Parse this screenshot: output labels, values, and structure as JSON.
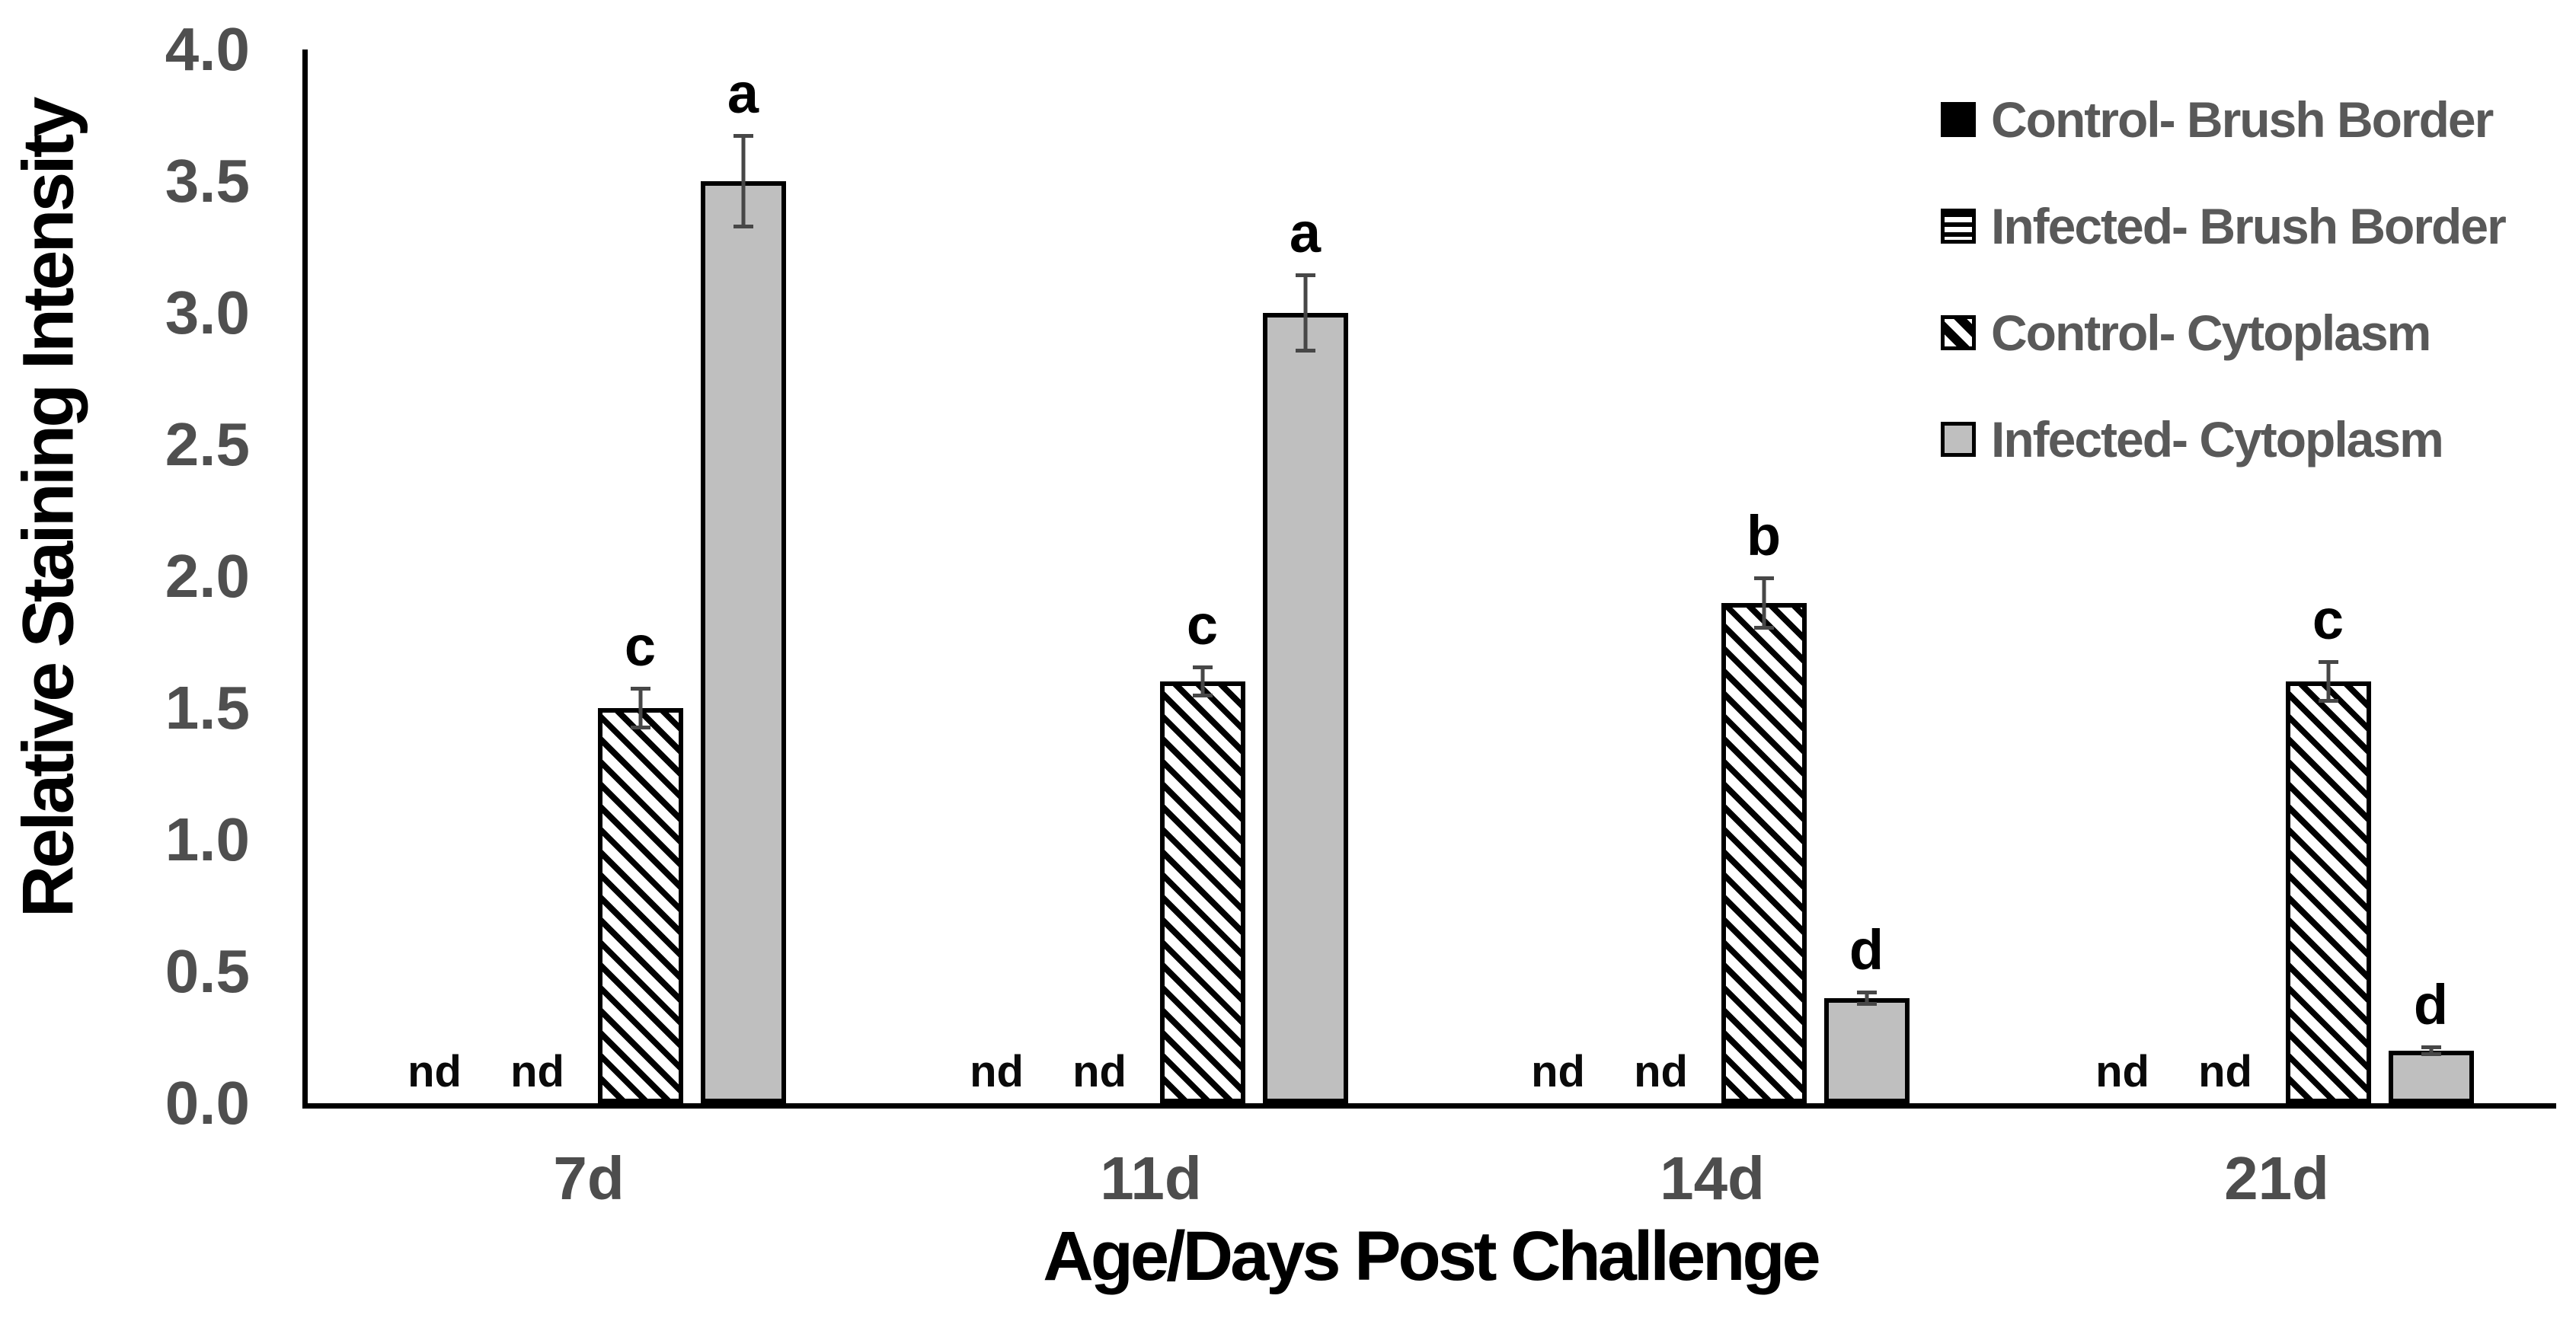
{
  "colors": {
    "background": "#ffffff",
    "axis_black": "#000000",
    "tick_text_gray": "#4d4d4d",
    "legend_text_gray": "#595959",
    "bar_gray": "#bfbfbf",
    "error_bar_gray": "#474747"
  },
  "chart_data": {
    "type": "bar",
    "xlabel": "Age/Days Post Challenge",
    "ylabel": "Relative Staining Intensity",
    "ylim": [
      0,
      4
    ],
    "ytick_step": 0.5,
    "yticks": [
      "4.0",
      "3.5",
      "3.0",
      "2.5",
      "2.0",
      "1.5",
      "1.0",
      "0.5",
      "0.0"
    ],
    "categories": [
      "7d",
      "11d",
      "14d",
      "21d"
    ],
    "nd_label": "nd",
    "grid": false,
    "legend_position": "top-right",
    "error_bars": true,
    "series": [
      {
        "name": "Control- Brush Border",
        "pattern": "solid-black",
        "values": [
          null,
          null,
          null,
          null
        ],
        "errors": [
          null,
          null,
          null,
          null
        ],
        "letters": [
          null,
          null,
          null,
          null
        ]
      },
      {
        "name": "Infected- Brush Border",
        "pattern": "horizontal-stripes",
        "values": [
          null,
          null,
          null,
          null
        ],
        "errors": [
          null,
          null,
          null,
          null
        ],
        "letters": [
          null,
          null,
          null,
          null
        ]
      },
      {
        "name": "Control- Cytoplasm",
        "pattern": "diagonal-stripes",
        "values": [
          1.5,
          1.6,
          1.9,
          1.6
        ],
        "errors": [
          0.08,
          0.06,
          0.1,
          0.08
        ],
        "letters": [
          "c",
          "c",
          "b",
          "c"
        ]
      },
      {
        "name": "Infected- Cytoplasm",
        "pattern": "solid-gray",
        "values": [
          3.5,
          3.0,
          0.4,
          0.2
        ],
        "errors": [
          0.18,
          0.15,
          0.03,
          0.02
        ],
        "letters": [
          "a",
          "a",
          "d",
          "d"
        ]
      }
    ]
  }
}
